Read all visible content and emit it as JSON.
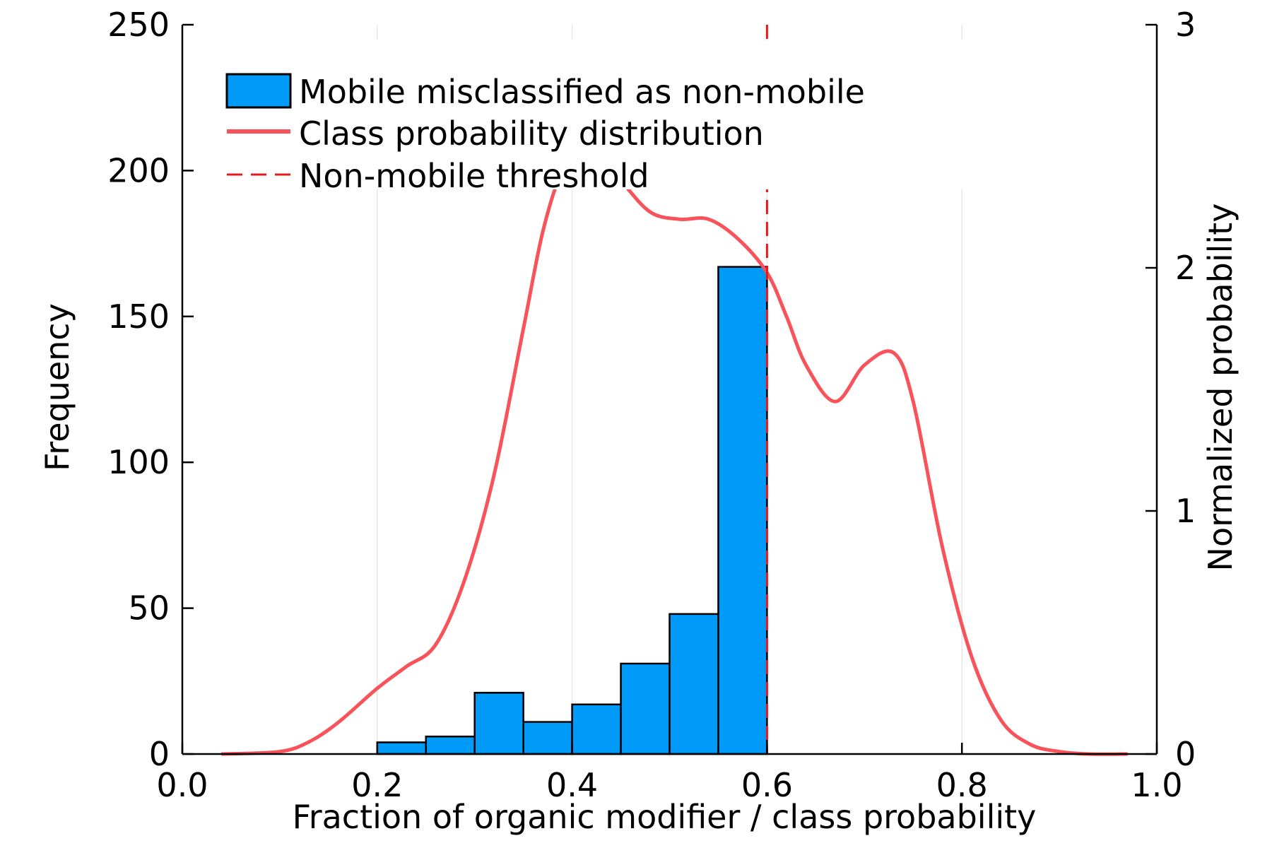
{
  "chart_data": {
    "type": "bar",
    "xlabel": "Fraction of organic modifier / class probability",
    "ylabel": "Frequency",
    "y2label": "Normalized probability",
    "xlim": [
      0.0,
      1.0
    ],
    "ylim": [
      0,
      250
    ],
    "y2lim": [
      0,
      3
    ],
    "x_ticks": [
      "0.0",
      "0.2",
      "0.4",
      "0.6",
      "0.8",
      "1.0"
    ],
    "y_ticks": [
      "0",
      "50",
      "100",
      "150",
      "200",
      "250"
    ],
    "y2_ticks": [
      "0",
      "1",
      "2",
      "3"
    ],
    "grid": "vertical",
    "legend_position": "top-left",
    "histogram": {
      "name": "Mobile misclassified as non-mobile",
      "color": "#009af9",
      "bin_edges": [
        0.2,
        0.25,
        0.3,
        0.35,
        0.4,
        0.45,
        0.5,
        0.55,
        0.6
      ],
      "values": [
        4,
        6,
        21,
        11,
        17,
        31,
        48,
        167
      ]
    },
    "density": {
      "name": "Class probability distribution",
      "color": "#f8525a",
      "x": [
        0.04,
        0.1,
        0.13,
        0.16,
        0.2,
        0.23,
        0.26,
        0.29,
        0.32,
        0.35,
        0.37,
        0.39,
        0.41,
        0.43,
        0.45,
        0.48,
        0.51,
        0.54,
        0.57,
        0.6,
        0.62,
        0.64,
        0.67,
        0.7,
        0.73,
        0.75,
        0.78,
        0.81,
        0.84,
        0.87,
        0.9,
        0.93,
        0.97
      ],
      "y": [
        0.0,
        0.01,
        0.05,
        0.13,
        0.27,
        0.36,
        0.45,
        0.72,
        1.15,
        1.75,
        2.15,
        2.4,
        2.48,
        2.46,
        2.36,
        2.23,
        2.2,
        2.2,
        2.12,
        1.98,
        1.8,
        1.6,
        1.45,
        1.6,
        1.65,
        1.45,
        0.85,
        0.4,
        0.14,
        0.04,
        0.01,
        0.0,
        0.0
      ]
    },
    "threshold": {
      "name": "Non-mobile threshold",
      "x": 0.6,
      "color": "#e8191d"
    }
  }
}
